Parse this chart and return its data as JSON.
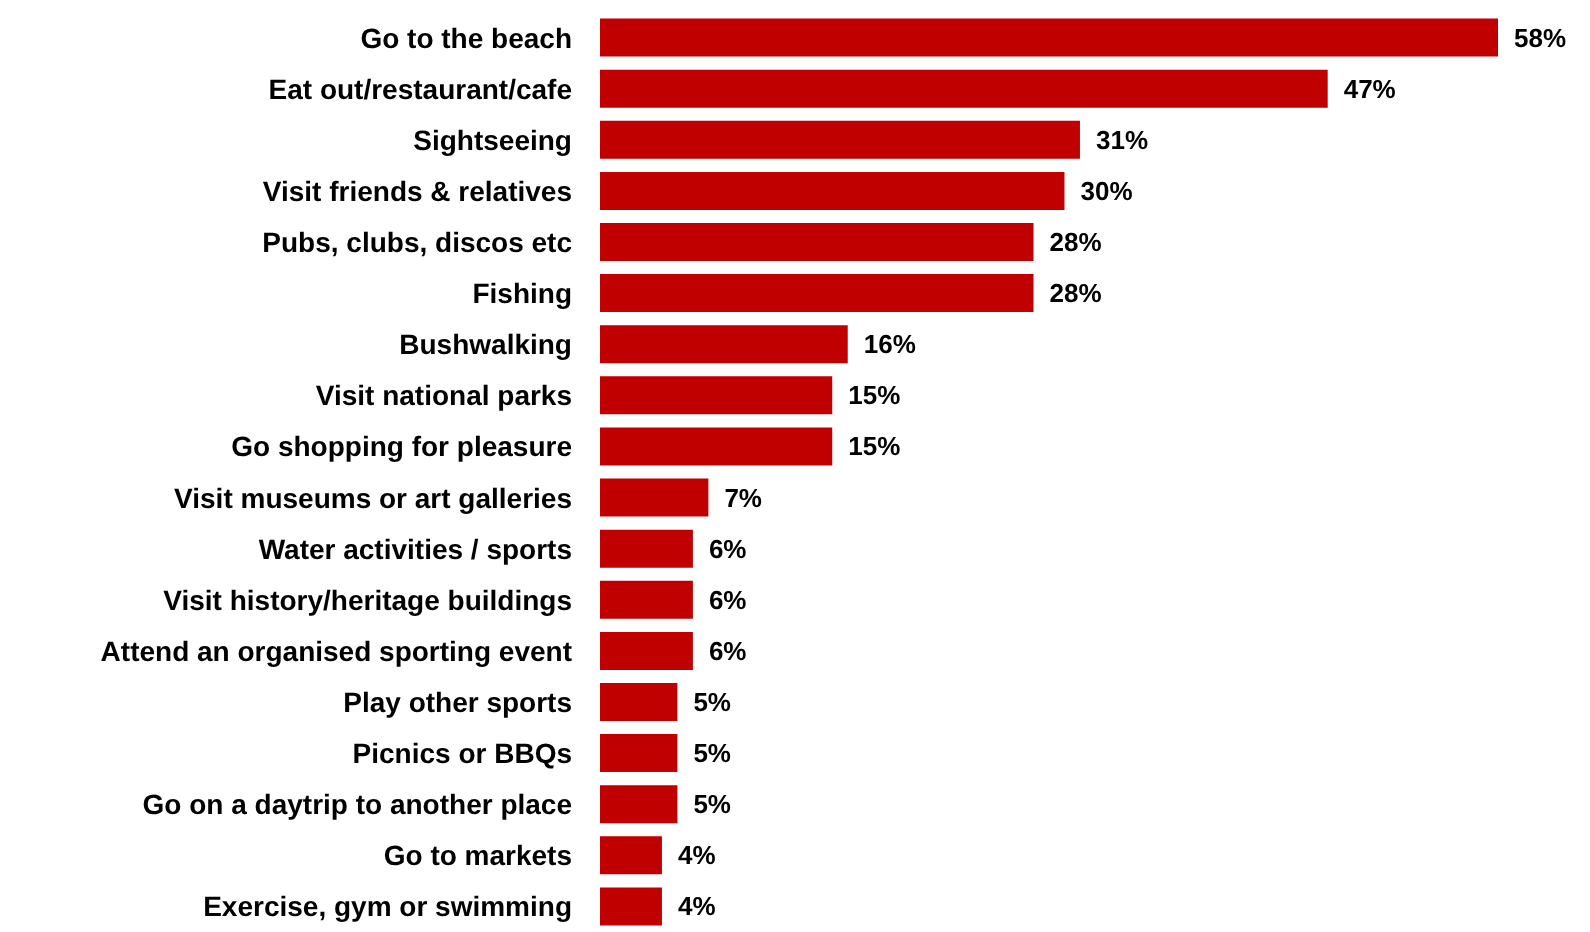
{
  "chart_data": {
    "type": "bar",
    "orientation": "horizontal",
    "categories": [
      "Go to the beach",
      "Eat out/restaurant/cafe",
      "Sightseeing",
      "Visit friends & relatives",
      "Pubs, clubs, discos etc",
      "Fishing",
      "Bushwalking",
      "Visit national parks",
      "Go shopping for pleasure",
      "Visit museums or art galleries",
      "Water activities / sports",
      "Visit history/heritage buildings",
      "Attend an organised sporting event",
      "Play other sports",
      "Picnics or BBQs",
      "Go on a daytrip to another place",
      "Go to markets",
      "Exercise, gym or swimming"
    ],
    "values": [
      58,
      47,
      31,
      30,
      28,
      28,
      16,
      15,
      15,
      7,
      6,
      6,
      6,
      5,
      5,
      5,
      4,
      4
    ],
    "value_labels": [
      "58%",
      "47%",
      "31%",
      "30%",
      "28%",
      "28%",
      "16%",
      "15%",
      "15%",
      "7%",
      "6%",
      "6%",
      "6%",
      "5%",
      "5%",
      "5%",
      "4%",
      "4%"
    ],
    "color": "#c00000"
  }
}
